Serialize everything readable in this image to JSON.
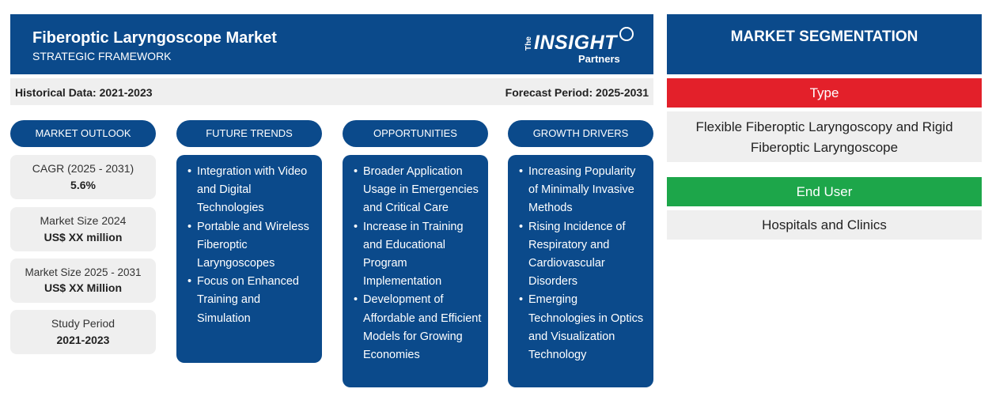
{
  "header": {
    "title": "Fiberoptic Laryngoscope Market",
    "subtitle": "STRATEGIC FRAMEWORK",
    "logo": {
      "the": "The",
      "insight": "INSIGHT",
      "partners": "Partners"
    }
  },
  "periods": {
    "historical": "Historical Data: 2021-2023",
    "forecast": "Forecast Period: 2025-2031"
  },
  "columns": {
    "outlook": "MARKET OUTLOOK",
    "trends": "FUTURE TRENDS",
    "opportunities": "OPPORTUNITIES",
    "drivers": "GROWTH DRIVERS"
  },
  "outlook": [
    {
      "label": "CAGR (2025 - 2031)",
      "value": "5.6%"
    },
    {
      "label": "Market Size 2024",
      "value": "US$ XX million"
    },
    {
      "label": "Market Size 2025 - 2031",
      "value": "US$ XX Million"
    },
    {
      "label": "Study Period",
      "value": "2021-2023"
    }
  ],
  "trends": [
    "Integration with Video and Digital Technologies",
    "Portable and Wireless Fiberoptic Laryngoscopes",
    "Focus on Enhanced Training and Simulation"
  ],
  "opportunities": [
    "Broader Application Usage in Emergencies and Critical Care",
    "Increase in Training and Educational Program Implementation",
    "Development of Affordable and Efficient Models for Growing Economies"
  ],
  "drivers": [
    "Increasing Popularity of Minimally Invasive Methods",
    "Rising Incidence of Respiratory and Cardiovascular Disorders",
    "Emerging Technologies in Optics and Visualization Technology"
  ],
  "segmentation": {
    "title": "MARKET SEGMENTATION",
    "type_label": "Type",
    "type_value": "Flexible Fiberoptic Laryngoscopy and Rigid Fiberoptic Laryngoscope",
    "end_user_label": "End User",
    "end_user_value": "Hospitals and Clinics"
  },
  "colors": {
    "navy": "#0b4a8b",
    "red": "#e3202a",
    "green": "#1da64a",
    "panel_grey": "#efefef"
  }
}
